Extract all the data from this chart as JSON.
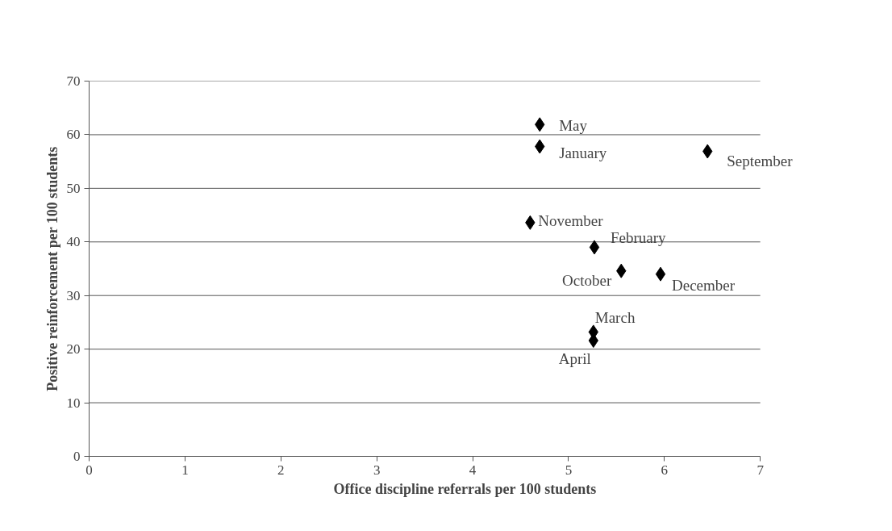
{
  "chart_data": {
    "type": "scatter",
    "xlabel": "Office discipline referrals per 100 students",
    "ylabel": "Positive reinforcement per 100 students",
    "series": [
      {
        "color": "#000000",
        "x": [
          6.45,
          5.55,
          4.6,
          5.96,
          4.7,
          5.27,
          5.26,
          5.26,
          4.7
        ],
        "values": [
          56.9,
          34.6,
          43.6,
          34.0,
          57.8,
          39.0,
          23.2,
          21.6,
          61.9
        ]
      }
    ],
    "annotations": [
      {
        "text": "September",
        "x": 6.45,
        "y": 56.9
      },
      {
        "text": "October",
        "x": 5.55,
        "y": 34.6
      },
      {
        "text": "November",
        "x": 4.6,
        "y": 43.6
      },
      {
        "text": "December",
        "x": 5.96,
        "y": 34.0
      },
      {
        "text": "January",
        "x": 4.7,
        "y": 57.8
      },
      {
        "text": "February",
        "x": 5.27,
        "y": 39.0
      },
      {
        "text": "March",
        "x": 5.26,
        "y": 23.2
      },
      {
        "text": "April",
        "x": 5.26,
        "y": 21.6
      },
      {
        "text": "May",
        "x": 4.7,
        "y": 61.9
      }
    ],
    "xlim": [
      0,
      7
    ],
    "xticks": [
      0,
      1,
      2,
      3,
      4,
      5,
      6,
      7
    ],
    "ylim": [
      0,
      70
    ],
    "yticks": [
      0,
      10,
      20,
      30,
      40,
      50,
      60,
      70
    ],
    "grid": "y",
    "marker": "diamond"
  }
}
